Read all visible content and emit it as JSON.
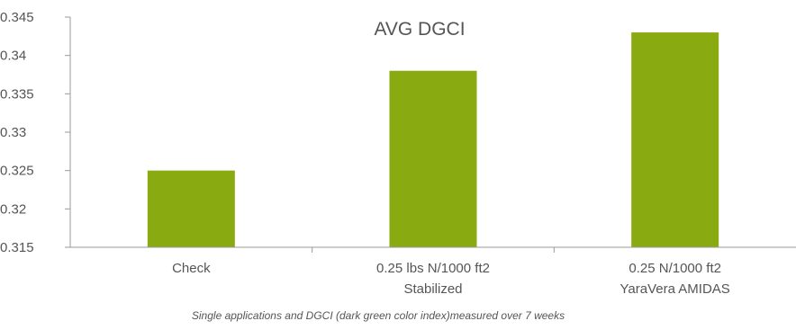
{
  "chart_data": {
    "type": "bar",
    "title": "AVG DGCI",
    "caption": "Single applications and DGCI (dark green color index)measured over 7 weeks",
    "categories": [
      [
        "Check"
      ],
      [
        "0.25 lbs N/1000 ft2",
        "Stabilized"
      ],
      [
        "0.25 N/1000 ft2",
        "YaraVera AMIDAS"
      ]
    ],
    "values": [
      0.325,
      0.338,
      0.343
    ],
    "ylim": [
      0.315,
      0.345
    ],
    "yticks": [
      "0.315",
      "0.32",
      "0.325",
      "0.33",
      "0.335",
      "0.34",
      "0.345"
    ],
    "xlabel": "",
    "ylabel": "",
    "grid": false,
    "legend": "none",
    "colors": {
      "bar": "#8aaa12",
      "axis": "#9a9a9a",
      "text": "#555555"
    }
  }
}
